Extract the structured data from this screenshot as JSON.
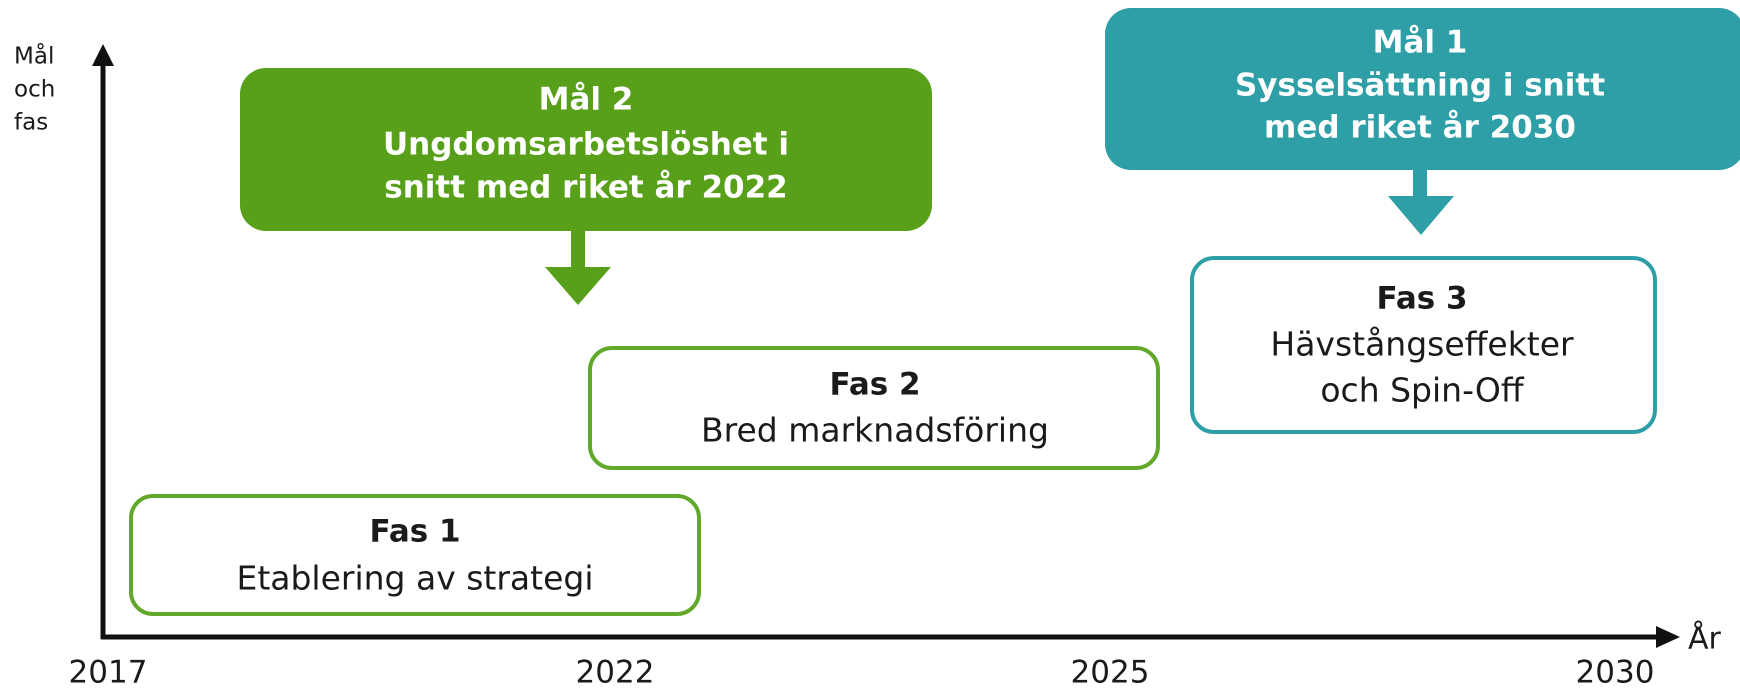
{
  "y_axis_label": [
    "Mål",
    "och",
    "fas"
  ],
  "x_axis_label": "År",
  "x_labels": [
    "2017",
    "2022",
    "2025",
    "2030"
  ],
  "goals": [
    {
      "title": "Mål 2",
      "lines": [
        "Ungdomsarbetslöshet i",
        "snitt med riket år 2022"
      ]
    },
    {
      "title": "Mål 1",
      "lines": [
        "Sysselsättning i snitt",
        "med riket år 2030"
      ]
    }
  ],
  "phases": [
    {
      "title": "Fas 1",
      "lines": [
        "Etablering av strategi"
      ]
    },
    {
      "title": "Fas 2",
      "lines": [
        "Bred marknadsföring"
      ]
    },
    {
      "title": "Fas 3",
      "lines": [
        "Hävstångseffekter",
        "och Spin-Off"
      ]
    }
  ]
}
